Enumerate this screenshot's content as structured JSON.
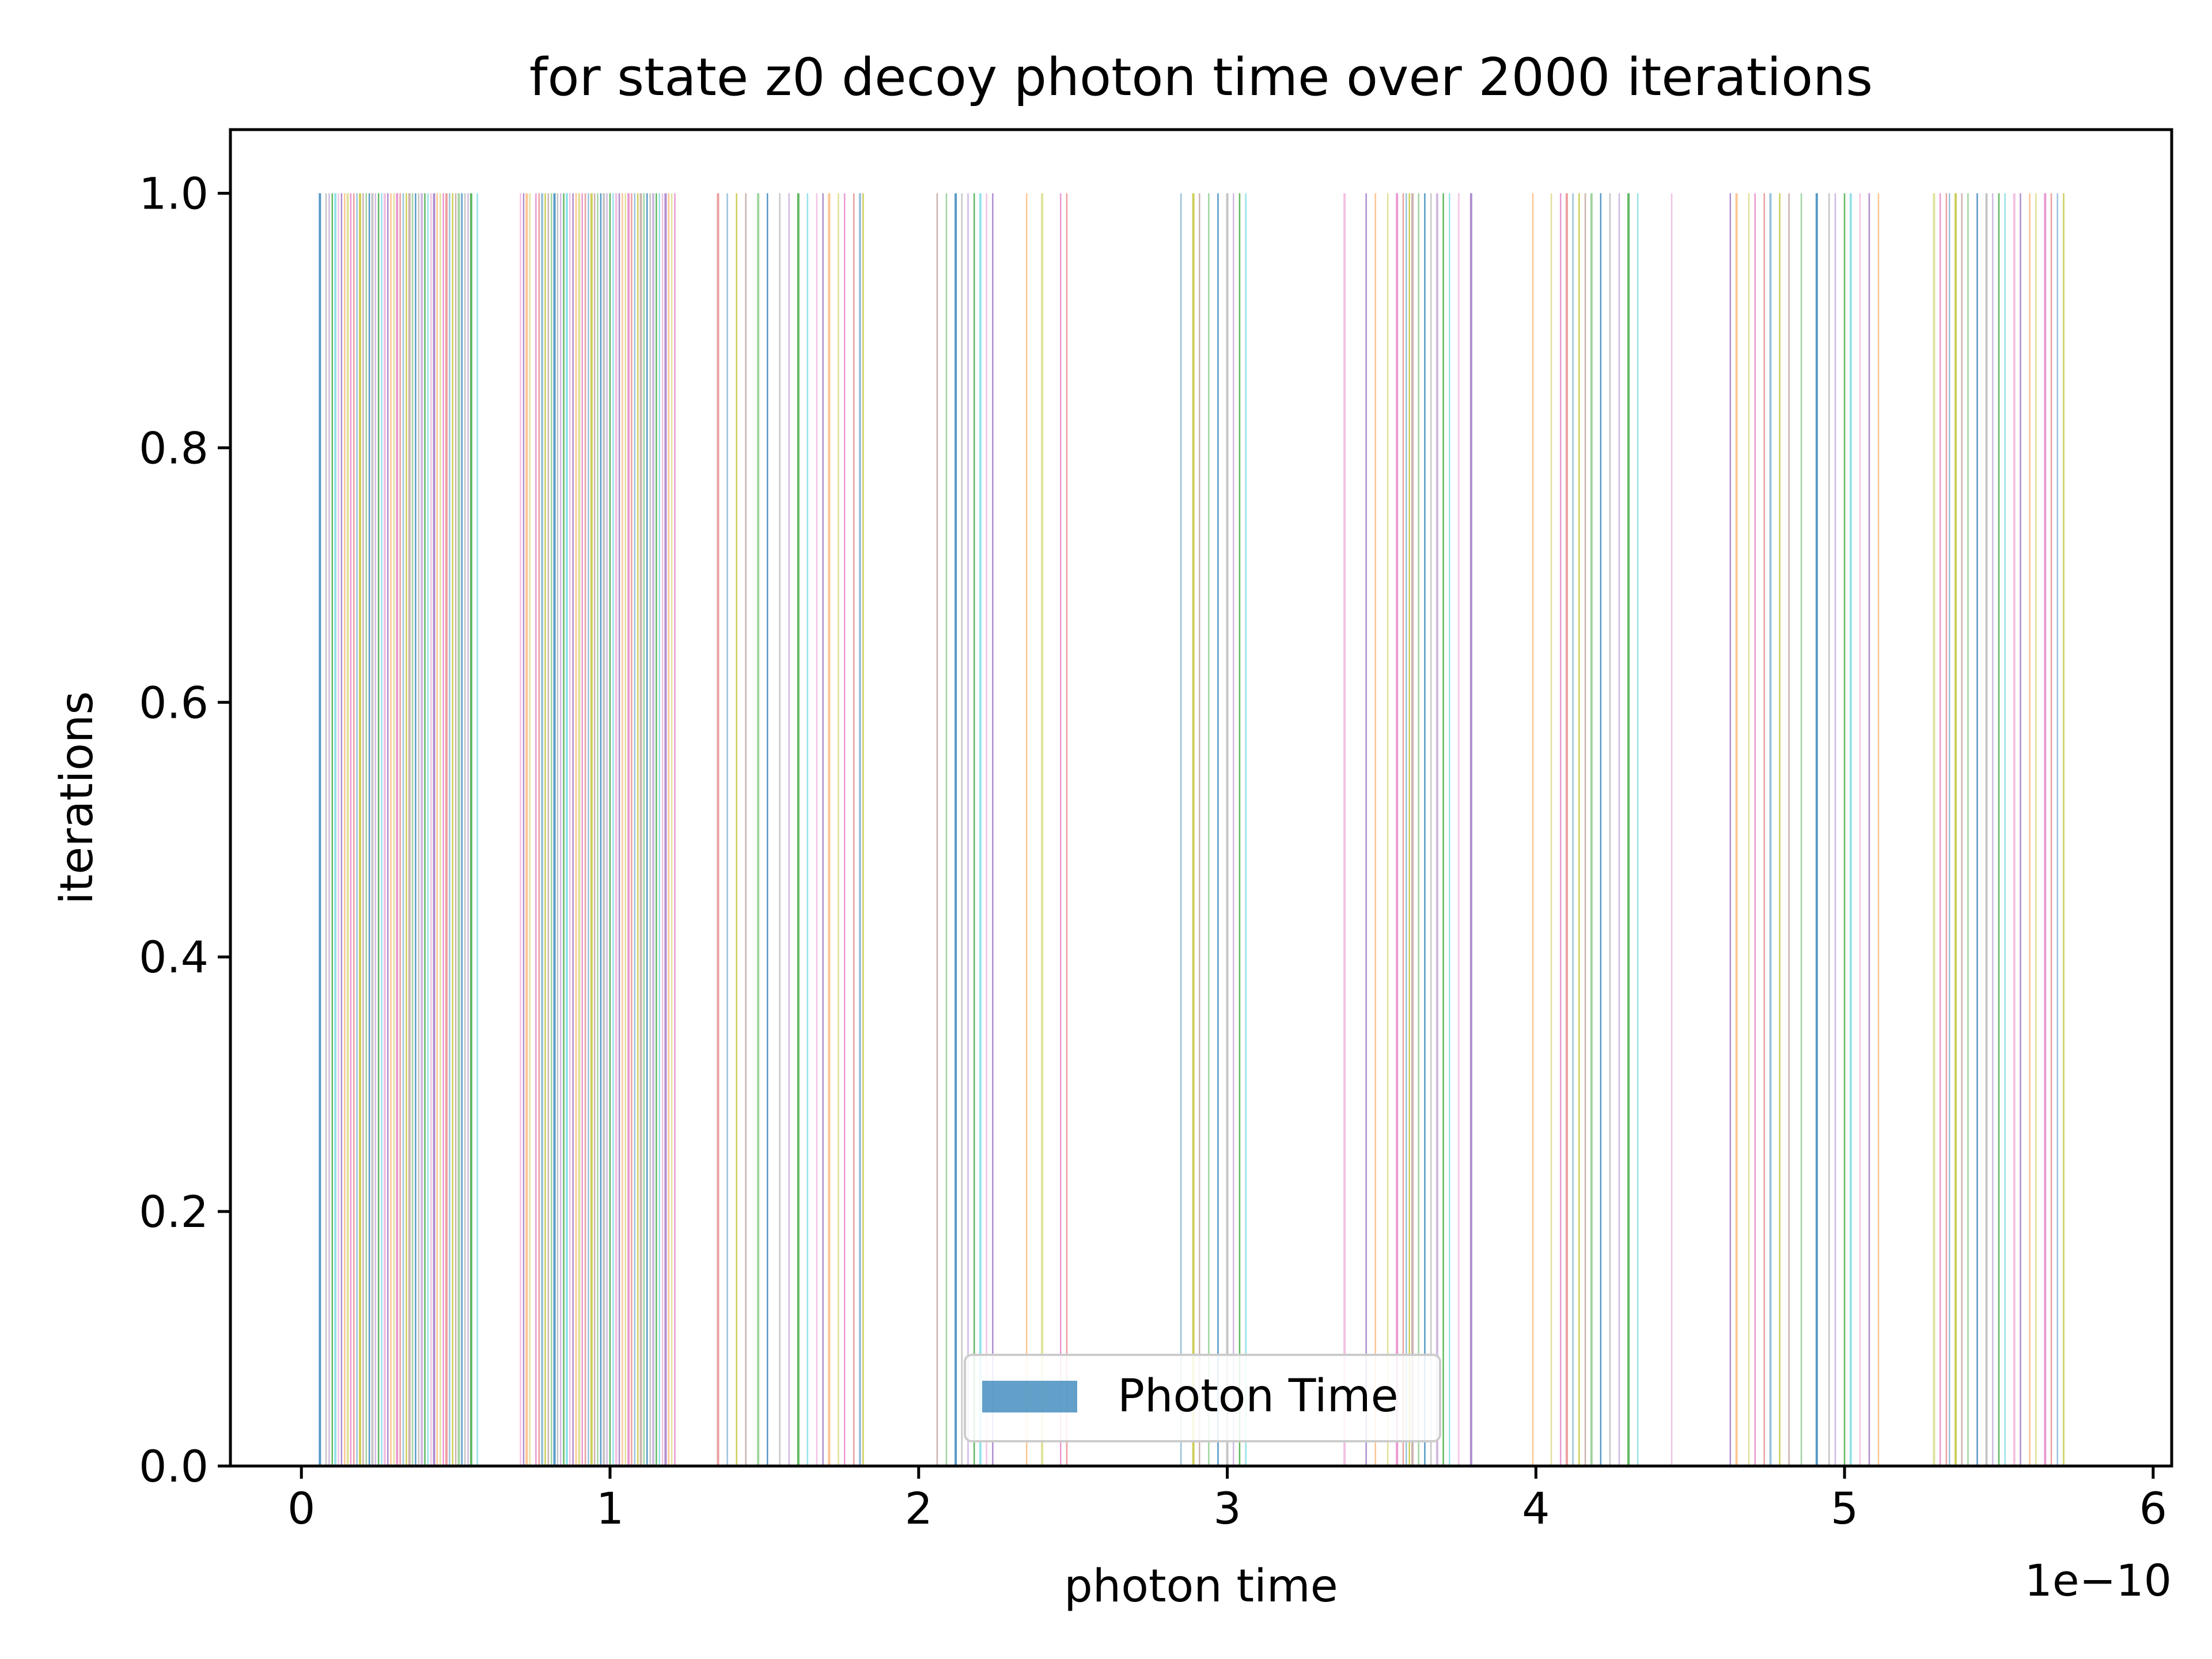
{
  "chart_data": {
    "type": "bar",
    "title": "for state z0 decoy photon time over 2000 iterations",
    "xlabel": "photon time",
    "ylabel": "iterations",
    "x_offset_label": "1e−10",
    "xlim": [
      -0.23,
      6.06
    ],
    "ylim": [
      0.0,
      1.05
    ],
    "xticks": [
      0,
      1,
      2,
      3,
      4,
      5,
      6
    ],
    "xtick_labels": [
      "0",
      "1",
      "2",
      "3",
      "4",
      "5",
      "6"
    ],
    "yticks": [
      0.0,
      0.2,
      0.4,
      0.6,
      0.8,
      1.0
    ],
    "ytick_labels": [
      "0.0",
      "0.2",
      "0.4",
      "0.6",
      "0.8",
      "1.0"
    ],
    "grid": false,
    "legend": {
      "position": "lower center",
      "entries": [
        "Photon Time"
      ],
      "color": "#1f77b4"
    },
    "bar_height": 1.0,
    "bar_alpha": 0.7,
    "colors": [
      "#1f77b4",
      "#ff7f0e",
      "#2ca02c",
      "#d62728",
      "#9467bd",
      "#8c564b",
      "#e377c2",
      "#7f7f7f",
      "#bcbd22",
      "#17becf"
    ],
    "series": [
      {
        "name": "Photon Time",
        "x": [
          0.06,
          0.08,
          0.09,
          0.1,
          0.11,
          0.12,
          0.13,
          0.14,
          0.15,
          0.16,
          0.17,
          0.18,
          0.19,
          0.2,
          0.21,
          0.22,
          0.23,
          0.24,
          0.25,
          0.26,
          0.27,
          0.28,
          0.29,
          0.3,
          0.31,
          0.32,
          0.33,
          0.34,
          0.35,
          0.36,
          0.37,
          0.38,
          0.39,
          0.4,
          0.41,
          0.42,
          0.43,
          0.44,
          0.45,
          0.46,
          0.47,
          0.48,
          0.49,
          0.5,
          0.51,
          0.52,
          0.53,
          0.54,
          0.55,
          0.57,
          0.71,
          0.72,
          0.73,
          0.74,
          0.76,
          0.77,
          0.78,
          0.79,
          0.8,
          0.81,
          0.82,
          0.83,
          0.84,
          0.85,
          0.86,
          0.87,
          0.88,
          0.89,
          0.9,
          0.91,
          0.92,
          0.93,
          0.94,
          0.95,
          0.96,
          0.97,
          0.98,
          0.99,
          1.0,
          1.01,
          1.02,
          1.03,
          1.04,
          1.05,
          1.06,
          1.07,
          1.08,
          1.09,
          1.1,
          1.11,
          1.12,
          1.13,
          1.14,
          1.15,
          1.16,
          1.17,
          1.18,
          1.19,
          1.2,
          1.21,
          1.35,
          1.38,
          1.41,
          1.44,
          1.48,
          1.51,
          1.55,
          1.58,
          1.61,
          1.64,
          1.67,
          1.69,
          1.71,
          1.74,
          1.76,
          1.79,
          1.81,
          1.82,
          2.06,
          2.09,
          2.12,
          2.14,
          2.16,
          2.18,
          2.2,
          2.22,
          2.24,
          2.35,
          2.4,
          2.46,
          2.48,
          2.85,
          2.89,
          2.91,
          2.94,
          2.97,
          3.0,
          3.02,
          3.04,
          3.06,
          3.38,
          3.45,
          3.48,
          3.52,
          3.55,
          3.57,
          3.58,
          3.59,
          3.6,
          3.62,
          3.64,
          3.66,
          3.68,
          3.7,
          3.72,
          3.75,
          3.79,
          3.99,
          4.05,
          4.08,
          4.1,
          4.12,
          4.14,
          4.16,
          4.18,
          4.21,
          4.24,
          4.27,
          4.3,
          4.33,
          4.44,
          4.63,
          4.65,
          4.69,
          4.71,
          4.74,
          4.76,
          4.79,
          4.82,
          4.86,
          4.91,
          4.95,
          4.97,
          5.0,
          5.02,
          5.05,
          5.08,
          5.11,
          5.29,
          5.31,
          5.33,
          5.34,
          5.36,
          5.38,
          5.4,
          5.43,
          5.46,
          5.48,
          5.5,
          5.52,
          5.55,
          5.57,
          5.6,
          5.62,
          5.65,
          5.67,
          5.69,
          5.71
        ]
      }
    ]
  }
}
